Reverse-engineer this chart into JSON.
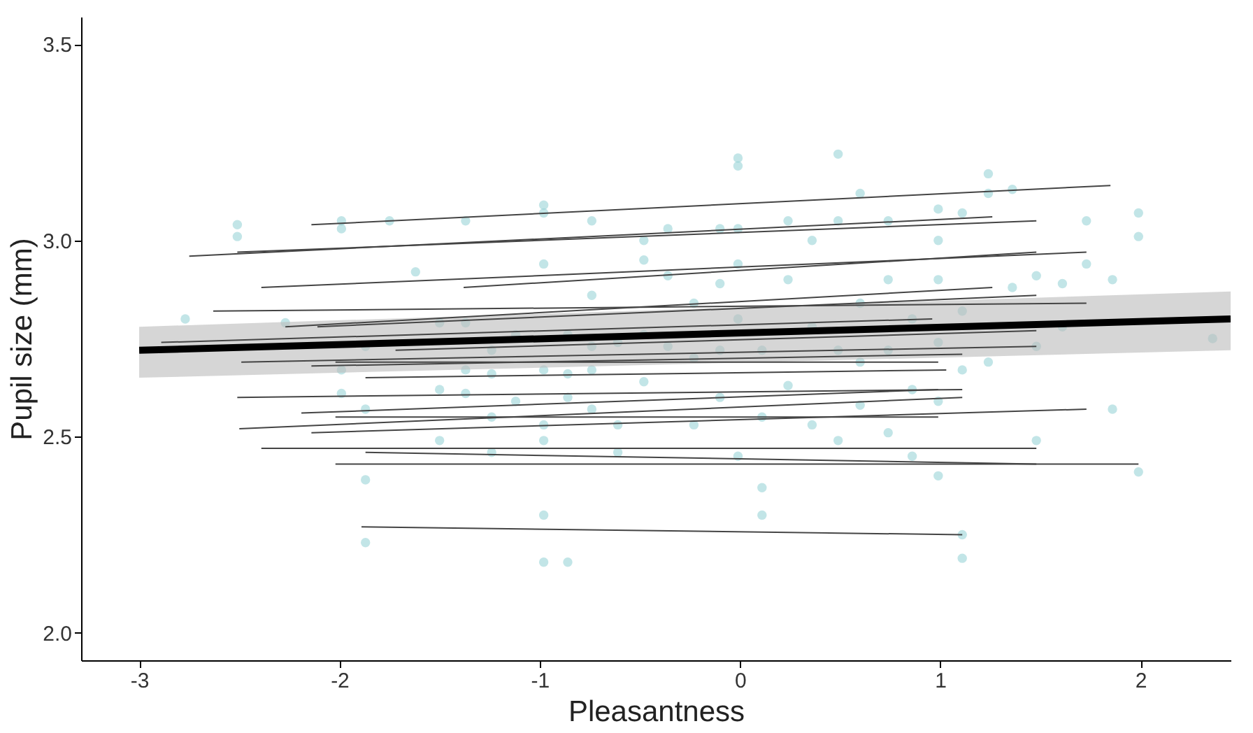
{
  "chart_data": {
    "type": "scatter",
    "xlabel": "Pleasantness",
    "ylabel": "Pupil size (mm)",
    "xlim": [
      -3.29,
      2.45
    ],
    "ylim": [
      1.93,
      3.57
    ],
    "xticks": [
      -3,
      -2,
      -1,
      0,
      1,
      2
    ],
    "yticks": [
      {
        "value": 2,
        "label": "2.0"
      },
      {
        "value": 2.5,
        "label": "2.5"
      },
      {
        "value": 3,
        "label": "3.0"
      },
      {
        "value": 3.5,
        "label": "3.5"
      }
    ],
    "grid": false,
    "marker": "none",
    "series": [
      {
        "color": "#8fcfd4",
        "marker": "circle",
        "x": [
          -2.77,
          -2.51,
          -2.27,
          -2.51,
          -1.99,
          -1.99,
          -1.99,
          -1.99,
          -1.87,
          -1.87,
          -1.87,
          -1.75,
          -1.62,
          -1.5,
          -1.5,
          -1.5,
          -1.37,
          -1.37,
          -1.37,
          -1.37,
          -1.24,
          -1.24,
          -1.24,
          -1.24,
          -1.12,
          -1.12,
          -0.98,
          -0.98,
          -0.98,
          -0.98,
          -0.98,
          -0.98,
          -0.98,
          -0.86,
          -0.86,
          -0.86,
          -0.74,
          -0.74,
          -0.74,
          -0.74,
          -0.74,
          -0.61,
          -0.61,
          -0.61,
          -0.48,
          -0.48,
          -0.48,
          -0.48,
          -0.36,
          -0.36,
          -0.36,
          -0.23,
          -0.23,
          -0.23,
          -0.1,
          -0.1,
          -0.1,
          -0.1,
          -0.01,
          -0.01,
          -0.01,
          -0.01,
          -0.01,
          -0.01,
          0.11,
          0.11,
          0.11,
          0.11,
          0.24,
          0.24,
          0.24,
          0.36,
          0.36,
          0.36,
          0.49,
          0.49,
          0.49,
          0.49,
          0.6,
          0.6,
          0.6,
          0.6,
          0.74,
          0.74,
          0.74,
          0.74,
          0.86,
          0.86,
          0.86,
          0.99,
          0.99,
          0.99,
          0.99,
          0.99,
          0.99,
          1.11,
          1.11,
          1.11,
          1.24,
          1.24,
          1.24,
          1.36,
          1.36,
          1.48,
          1.48,
          1.48,
          1.61,
          1.61,
          1.73,
          1.73,
          1.86,
          1.86,
          1.99,
          1.99,
          1.99,
          2.36,
          -1.87,
          -0.86,
          1.11,
          1.11,
          -0.98
        ],
        "values": [
          2.8,
          3.01,
          2.79,
          3.04,
          3.05,
          3.03,
          2.67,
          2.61,
          2.73,
          2.57,
          2.39,
          3.05,
          2.92,
          2.79,
          2.62,
          2.49,
          3.05,
          2.79,
          2.67,
          2.61,
          2.72,
          2.66,
          2.55,
          2.46,
          2.76,
          2.59,
          3.09,
          3.07,
          2.94,
          2.67,
          2.53,
          2.49,
          2.18,
          2.76,
          2.66,
          2.6,
          3.05,
          2.86,
          2.73,
          2.67,
          2.57,
          2.74,
          2.53,
          2.46,
          3.0,
          2.95,
          2.76,
          2.64,
          3.03,
          2.91,
          2.73,
          2.84,
          2.7,
          2.53,
          3.03,
          2.89,
          2.72,
          2.6,
          3.21,
          3.19,
          3.03,
          2.94,
          2.8,
          2.45,
          2.72,
          2.55,
          2.37,
          2.3,
          3.05,
          2.9,
          2.63,
          3.0,
          2.78,
          2.53,
          3.22,
          3.05,
          2.72,
          2.49,
          3.12,
          2.84,
          2.69,
          2.58,
          3.05,
          2.9,
          2.72,
          2.51,
          2.8,
          2.62,
          2.45,
          3.08,
          3.0,
          2.9,
          2.74,
          2.59,
          2.4,
          3.07,
          2.82,
          2.67,
          3.17,
          3.12,
          2.69,
          3.13,
          2.88,
          2.91,
          2.73,
          2.49,
          2.89,
          2.78,
          3.05,
          2.94,
          2.9,
          2.57,
          3.07,
          3.01,
          2.41,
          2.75,
          2.23,
          2.18,
          2.25,
          2.19,
          2.3
        ]
      },
      {
        "type": "line",
        "color": "#444444",
        "x": [
          -2.14,
          1.85
        ],
        "values": [
          3.04,
          3.14
        ]
      },
      {
        "type": "line",
        "color": "#444444",
        "x": [
          -2.75,
          1.26
        ],
        "values": [
          2.96,
          3.06
        ]
      },
      {
        "type": "line",
        "color": "#444444",
        "x": [
          -2.51,
          1.48
        ],
        "values": [
          2.97,
          3.05
        ]
      },
      {
        "type": "line",
        "color": "#444444",
        "x": [
          -1.38,
          1.48
        ],
        "values": [
          2.88,
          2.97
        ]
      },
      {
        "type": "line",
        "color": "#444444",
        "x": [
          -2.39,
          1.73
        ],
        "values": [
          2.88,
          2.97
        ]
      },
      {
        "type": "line",
        "color": "#444444",
        "x": [
          -2.63,
          1.73
        ],
        "values": [
          2.82,
          2.84
        ]
      },
      {
        "type": "line",
        "color": "#444444",
        "x": [
          -2.27,
          1.26
        ],
        "values": [
          2.78,
          2.88
        ]
      },
      {
        "type": "line",
        "color": "#444444",
        "x": [
          -2.11,
          1.48
        ],
        "values": [
          2.78,
          2.86
        ]
      },
      {
        "type": "line",
        "color": "#444444",
        "x": [
          -2.89,
          0.96
        ],
        "values": [
          2.74,
          2.8
        ]
      },
      {
        "type": "line",
        "color": "#444444",
        "x": [
          -1.72,
          1.48
        ],
        "values": [
          2.72,
          2.77
        ]
      },
      {
        "type": "line",
        "color": "#444444",
        "x": [
          -2.49,
          1.48
        ],
        "values": [
          2.69,
          2.73
        ]
      },
      {
        "type": "line",
        "color": "#444444",
        "x": [
          -2.14,
          1.11
        ],
        "values": [
          2.68,
          2.71
        ]
      },
      {
        "type": "line",
        "color": "#444444",
        "x": [
          -2.51,
          1.11
        ],
        "values": [
          2.6,
          2.62
        ]
      },
      {
        "type": "line",
        "color": "#444444",
        "x": [
          -2.02,
          0.99
        ],
        "values": [
          2.69,
          2.69
        ]
      },
      {
        "type": "line",
        "color": "#444444",
        "x": [
          -1.87,
          1.03
        ],
        "values": [
          2.65,
          2.67
        ]
      },
      {
        "type": "line",
        "color": "#444444",
        "x": [
          -2.19,
          0.99
        ],
        "values": [
          2.56,
          2.62
        ]
      },
      {
        "type": "line",
        "color": "#444444",
        "x": [
          -2.02,
          0.99
        ],
        "values": [
          2.55,
          2.55
        ]
      },
      {
        "type": "line",
        "color": "#444444",
        "x": [
          -2.14,
          1.73
        ],
        "values": [
          2.51,
          2.57
        ]
      },
      {
        "type": "line",
        "color": "#444444",
        "x": [
          -2.39,
          1.48
        ],
        "values": [
          2.47,
          2.47
        ]
      },
      {
        "type": "line",
        "color": "#444444",
        "x": [
          -1.87,
          1.48
        ],
        "values": [
          2.46,
          2.43
        ]
      },
      {
        "type": "line",
        "color": "#444444",
        "x": [
          -2.02,
          1.99
        ],
        "values": [
          2.43,
          2.43
        ]
      },
      {
        "type": "line",
        "color": "#444444",
        "x": [
          -1.89,
          1.11
        ],
        "values": [
          2.27,
          2.25
        ]
      },
      {
        "type": "line",
        "color": "#444444",
        "x": [
          -2.5,
          1.11
        ],
        "values": [
          2.52,
          2.6
        ]
      },
      {
        "type": "line",
        "color": "#000000",
        "x": [
          -3,
          2.45
        ],
        "values": [
          2.72,
          2.8
        ],
        "lower": [
          2.65,
          2.72
        ],
        "upper": [
          2.78,
          2.87
        ]
      }
    ]
  }
}
